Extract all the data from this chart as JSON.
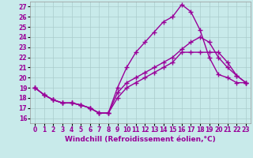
{
  "background_color": "#c8eaea",
  "grid_color": "#aacccc",
  "line_color": "#990099",
  "marker": "+",
  "marker_size": 4,
  "line_width": 1.0,
  "xlabel": "Windchill (Refroidissement éolien,°C)",
  "xlabel_fontsize": 6.5,
  "xtick_fontsize": 5.5,
  "ytick_fontsize": 5.5,
  "xlim": [
    -0.5,
    23.5
  ],
  "ylim": [
    15.5,
    27.5
  ],
  "yticks": [
    16,
    17,
    18,
    19,
    20,
    21,
    22,
    23,
    24,
    25,
    26,
    27
  ],
  "xticks": [
    0,
    1,
    2,
    3,
    4,
    5,
    6,
    7,
    8,
    9,
    10,
    11,
    12,
    13,
    14,
    15,
    16,
    17,
    18,
    19,
    20,
    21,
    22,
    23
  ],
  "line1_x": [
    0,
    1,
    2,
    3,
    4,
    5,
    6,
    7,
    8,
    9,
    10,
    11,
    12,
    13,
    14,
    15,
    16,
    17,
    18,
    19,
    20,
    21,
    22,
    23
  ],
  "line1_y": [
    19.0,
    18.3,
    17.8,
    17.5,
    17.5,
    17.3,
    17.0,
    16.5,
    16.5,
    18.0,
    19.0,
    19.5,
    20.0,
    20.5,
    21.0,
    21.5,
    22.5,
    22.5,
    22.5,
    22.5,
    22.5,
    21.5,
    20.2,
    19.5
  ],
  "line2_x": [
    0,
    1,
    2,
    3,
    4,
    5,
    6,
    7,
    8,
    9,
    10,
    11,
    12,
    13,
    14,
    15,
    16,
    17,
    18,
    19,
    20,
    21,
    22,
    23
  ],
  "line2_y": [
    19.0,
    18.3,
    17.8,
    17.5,
    17.5,
    17.3,
    17.0,
    16.5,
    16.5,
    19.0,
    21.0,
    22.5,
    23.5,
    24.5,
    25.5,
    26.0,
    27.2,
    26.5,
    24.7,
    22.0,
    20.3,
    20.0,
    19.5,
    19.5
  ],
  "line3_x": [
    0,
    1,
    2,
    3,
    4,
    5,
    6,
    7,
    8,
    9,
    10,
    11,
    12,
    13,
    14,
    15,
    16,
    17,
    18,
    19,
    20,
    21,
    22,
    23
  ],
  "line3_y": [
    19.0,
    18.3,
    17.8,
    17.5,
    17.5,
    17.3,
    17.0,
    16.5,
    16.5,
    18.5,
    19.5,
    20.0,
    20.5,
    21.0,
    21.5,
    22.0,
    22.8,
    23.5,
    24.0,
    23.5,
    22.0,
    21.0,
    20.2,
    19.5
  ]
}
